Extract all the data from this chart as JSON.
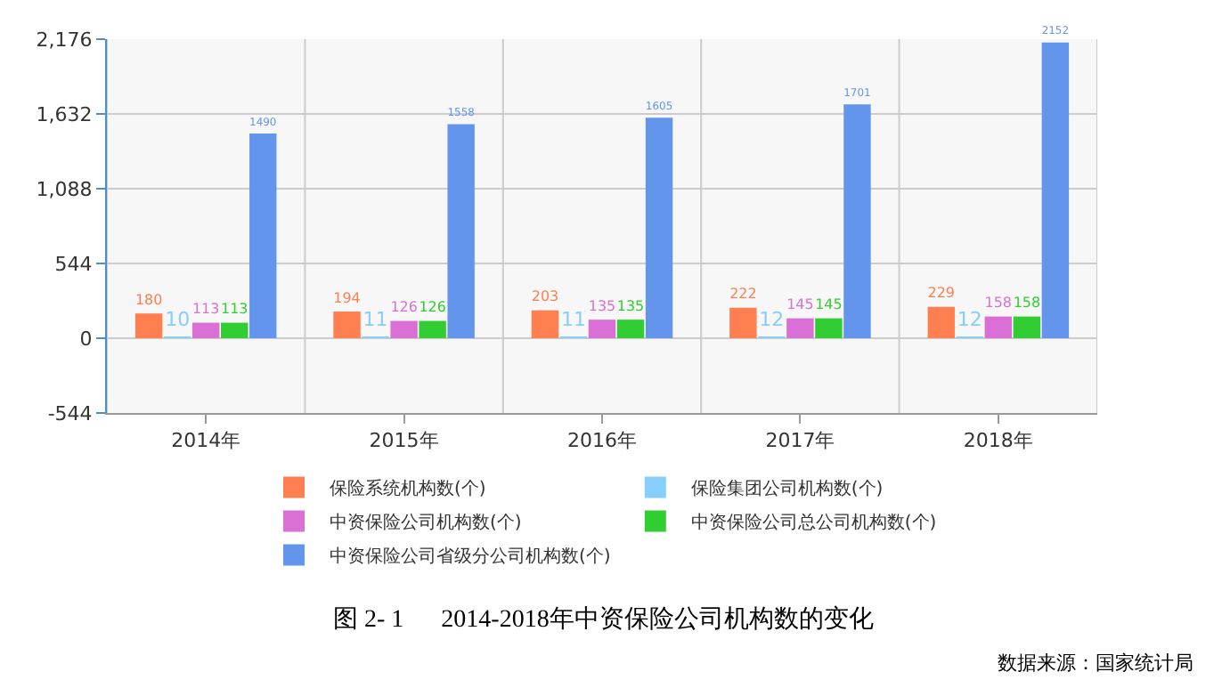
{
  "chart_data": {
    "type": "bar",
    "title": "图 2- 1      2014-2018年中资保险公司机构数的变化",
    "categories": [
      "2014年",
      "2015年",
      "2016年",
      "2017年",
      "2018年"
    ],
    "series": [
      {
        "name": "保险系统机构数(个)",
        "color": "#ff7f50",
        "values": [
          180,
          194,
          203,
          222,
          229
        ]
      },
      {
        "name": "保险集团公司机构数(个)",
        "color": "#87cefa",
        "values": [
          10,
          11,
          11,
          12,
          12
        ]
      },
      {
        "name": "中资保险公司机构数(个)",
        "color": "#da70d6",
        "values": [
          113,
          126,
          135,
          145,
          158
        ]
      },
      {
        "name": "中资保险公司总公司机构数(个)",
        "color": "#32cd32",
        "values": [
          113,
          126,
          135,
          145,
          158
        ]
      },
      {
        "name": "中资保险公司省级分公司机构数(个)",
        "color": "#6495ed",
        "values": [
          1490,
          1558,
          1605,
          1701,
          2152
        ]
      }
    ],
    "ylim": [
      -544,
      2176
    ],
    "yticks": [
      -544,
      0,
      544,
      {
        "value": 1088,
        "label": "1,088"
      },
      {
        "value": 1632,
        "label": "1,632"
      },
      {
        "value": 2176,
        "label": "2,176"
      }
    ],
    "grid": true,
    "legend": "bottom",
    "data_labels": true,
    "annotations": [
      "数据来源：国家统计局"
    ]
  }
}
